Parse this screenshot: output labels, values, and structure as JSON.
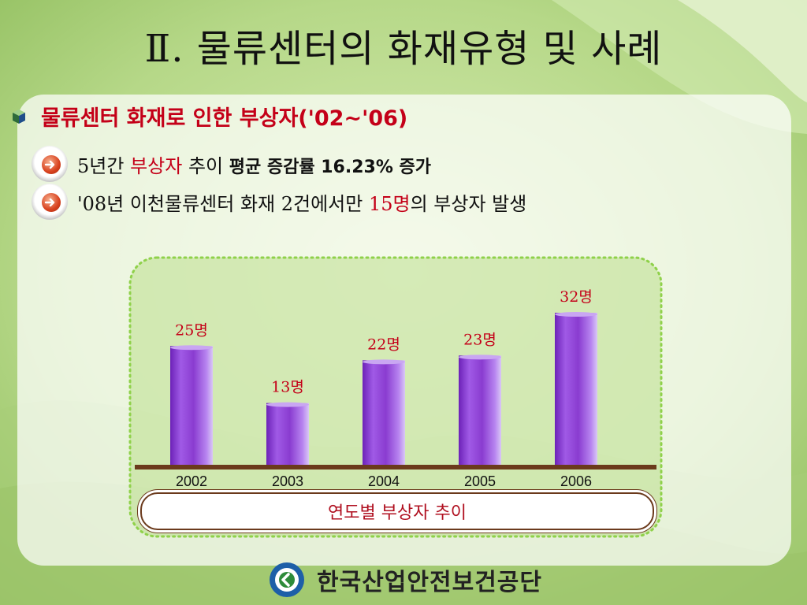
{
  "slide": {
    "title": "Ⅱ. 물류센터의 화재유형 및 사례",
    "section_heading": "물류센터 화재로 인한 부상자('02~'06)",
    "bullets": [
      {
        "prefix": "5년간 ",
        "highlight": "부상자",
        "middle": " 추이 ",
        "emphasis": "평균 증감률 16.23% 증가",
        "suffix": ""
      },
      {
        "prefix": "'08년 이천물류센터 화재 2건에서만 ",
        "highlight": "15명",
        "middle": "의 부상자 발생",
        "emphasis": "",
        "suffix": ""
      }
    ],
    "chart_caption": "연도별 부상자 추이",
    "footer_org": "한국산업안전보건공단"
  },
  "colors": {
    "accent_red": "#c40018",
    "bar_purple": "#8a3cd0",
    "baseline_brown": "#6b3a1c",
    "background_green": "#b9d98a"
  },
  "icons": [
    "cube-bullet-icon",
    "arrow-right-icon",
    "kosha-logo-icon"
  ],
  "chart_data": {
    "type": "bar",
    "categories": [
      "2002",
      "2003",
      "2004",
      "2005",
      "2006"
    ],
    "values": [
      25,
      13,
      22,
      23,
      32
    ],
    "data_labels": [
      "25명",
      "13명",
      "22명",
      "23명",
      "32명"
    ],
    "title": "연도별 부상자 추이",
    "xlabel": "",
    "ylabel": "",
    "ylim": [
      0,
      34
    ],
    "grid": false,
    "legend": "none"
  }
}
